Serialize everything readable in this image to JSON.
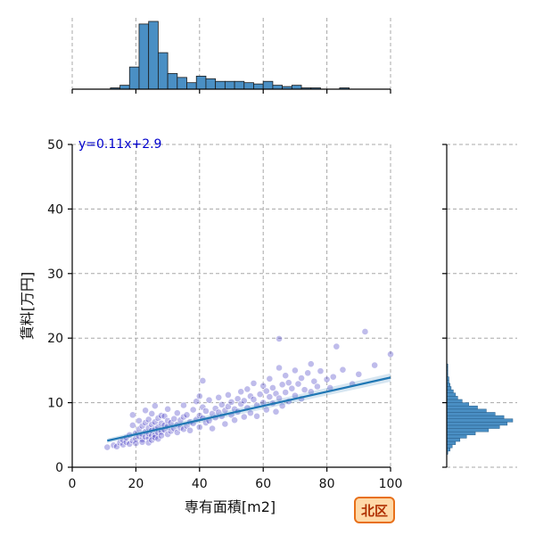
{
  "chart_data": {
    "type": "scatter",
    "xlabel": "専有面積[m2]",
    "ylabel": "賃料[万円]",
    "xlim": [
      0,
      100
    ],
    "ylim": [
      0,
      50
    ],
    "xticks": [
      "0",
      "20",
      "40",
      "60",
      "80",
      "100"
    ],
    "yticks": [
      "0",
      "10",
      "20",
      "30",
      "40",
      "50"
    ],
    "grid": true,
    "regression": {
      "label": "y=0.11x+2.9",
      "slope": 0.11,
      "intercept": 2.9,
      "x_range": [
        11,
        100
      ]
    },
    "badge": "北区",
    "colors": {
      "points": "#1a10b8",
      "regression": "#1f77b4",
      "hist_fill": "#4a8fc4",
      "hist_edge": "#1c1c1c",
      "badge_fill": "#ffd9a8",
      "badge_edge": "#e8701a"
    },
    "points": [
      [
        11,
        3.1
      ],
      [
        13,
        3.4
      ],
      [
        14,
        3.2
      ],
      [
        15,
        3.8
      ],
      [
        16,
        3.5
      ],
      [
        16,
        4.2
      ],
      [
        17,
        3.9
      ],
      [
        17,
        4.6
      ],
      [
        18,
        3.6
      ],
      [
        18,
        5.0
      ],
      [
        19,
        4.1
      ],
      [
        19,
        6.5
      ],
      [
        19,
        8.1
      ],
      [
        20,
        4.4
      ],
      [
        20,
        5.3
      ],
      [
        20,
        3.7
      ],
      [
        21,
        4.8
      ],
      [
        21,
        5.9
      ],
      [
        21,
        7.2
      ],
      [
        22,
        4.3
      ],
      [
        22,
        5.1
      ],
      [
        22,
        6.4
      ],
      [
        22,
        3.9
      ],
      [
        23,
        4.7
      ],
      [
        23,
        5.5
      ],
      [
        23,
        6.9
      ],
      [
        23,
        8.8
      ],
      [
        24,
        4.5
      ],
      [
        24,
        5.2
      ],
      [
        24,
        6.1
      ],
      [
        24,
        7.4
      ],
      [
        24,
        3.8
      ],
      [
        25,
        4.9
      ],
      [
        25,
        5.7
      ],
      [
        25,
        6.6
      ],
      [
        25,
        8.3
      ],
      [
        25,
        4.2
      ],
      [
        26,
        5.0
      ],
      [
        26,
        5.9
      ],
      [
        26,
        7.0
      ],
      [
        26,
        4.6
      ],
      [
        26,
        9.5
      ],
      [
        27,
        5.3
      ],
      [
        27,
        6.2
      ],
      [
        27,
        7.6
      ],
      [
        27,
        4.4
      ],
      [
        28,
        5.5
      ],
      [
        28,
        6.8
      ],
      [
        28,
        8.0
      ],
      [
        28,
        4.9
      ],
      [
        29,
        5.8
      ],
      [
        29,
        6.5
      ],
      [
        29,
        7.9
      ],
      [
        30,
        5.1
      ],
      [
        30,
        6.3
      ],
      [
        30,
        7.2
      ],
      [
        30,
        9.0
      ],
      [
        31,
        5.6
      ],
      [
        31,
        6.9
      ],
      [
        32,
        6.0
      ],
      [
        32,
        7.5
      ],
      [
        33,
        5.4
      ],
      [
        33,
        6.6
      ],
      [
        33,
        8.4
      ],
      [
        34,
        6.1
      ],
      [
        34,
        7.3
      ],
      [
        35,
        5.9
      ],
      [
        35,
        7.8
      ],
      [
        35,
        9.6
      ],
      [
        36,
        6.4
      ],
      [
        36,
        8.1
      ],
      [
        37,
        5.7
      ],
      [
        37,
        7.0
      ],
      [
        38,
        6.8
      ],
      [
        38,
        8.9
      ],
      [
        39,
        7.4
      ],
      [
        39,
        10.2
      ],
      [
        40,
        6.2
      ],
      [
        40,
        8.0
      ],
      [
        40,
        11.0
      ],
      [
        41,
        7.6
      ],
      [
        41,
        9.3
      ],
      [
        41,
        13.4
      ],
      [
        42,
        6.9
      ],
      [
        42,
        8.7
      ],
      [
        43,
        7.2
      ],
      [
        43,
        10.4
      ],
      [
        44,
        8.3
      ],
      [
        44,
        6.0
      ],
      [
        45,
        9.1
      ],
      [
        45,
        7.7
      ],
      [
        46,
        8.5
      ],
      [
        46,
        10.8
      ],
      [
        47,
        7.9
      ],
      [
        47,
        9.7
      ],
      [
        48,
        8.8
      ],
      [
        48,
        6.7
      ],
      [
        49,
        9.4
      ],
      [
        49,
        11.2
      ],
      [
        50,
        8.1
      ],
      [
        50,
        10.1
      ],
      [
        51,
        9.0
      ],
      [
        51,
        7.3
      ],
      [
        52,
        10.6
      ],
      [
        52,
        8.6
      ],
      [
        53,
        9.8
      ],
      [
        53,
        11.7
      ],
      [
        54,
        7.8
      ],
      [
        54,
        10.3
      ],
      [
        55,
        9.2
      ],
      [
        55,
        12.1
      ],
      [
        56,
        8.4
      ],
      [
        56,
        11.0
      ],
      [
        57,
        10.5
      ],
      [
        57,
        13.0
      ],
      [
        58,
        9.6
      ],
      [
        58,
        7.9
      ],
      [
        59,
        11.3
      ],
      [
        60,
        10.0
      ],
      [
        60,
        12.6
      ],
      [
        61,
        8.9
      ],
      [
        61,
        11.8
      ],
      [
        62,
        10.9
      ],
      [
        62,
        13.7
      ],
      [
        63,
        9.9
      ],
      [
        63,
        12.3
      ],
      [
        64,
        11.4
      ],
      [
        64,
        8.6
      ],
      [
        65,
        10.7
      ],
      [
        65,
        15.4
      ],
      [
        65,
        19.9
      ],
      [
        66,
        12.8
      ],
      [
        66,
        9.5
      ],
      [
        67,
        11.6
      ],
      [
        67,
        14.2
      ],
      [
        68,
        10.2
      ],
      [
        68,
        13.1
      ],
      [
        69,
        12.2
      ],
      [
        70,
        11.1
      ],
      [
        70,
        15.0
      ],
      [
        71,
        12.9
      ],
      [
        72,
        10.6
      ],
      [
        72,
        13.8
      ],
      [
        73,
        12.0
      ],
      [
        74,
        14.6
      ],
      [
        75,
        11.7
      ],
      [
        75,
        16.0
      ],
      [
        76,
        13.3
      ],
      [
        77,
        12.5
      ],
      [
        78,
        14.9
      ],
      [
        80,
        13.6
      ],
      [
        81,
        12.3
      ],
      [
        82,
        14.0
      ],
      [
        83,
        18.7
      ],
      [
        85,
        15.1
      ],
      [
        88,
        12.9
      ],
      [
        90,
        14.4
      ],
      [
        92,
        21.0
      ],
      [
        95,
        15.8
      ],
      [
        100,
        17.5
      ]
    ],
    "top_hist": {
      "bin_start": 12,
      "bin_width": 3,
      "counts": [
        1,
        3,
        17,
        50,
        52,
        28,
        12,
        9,
        5,
        10,
        8,
        6,
        6,
        6,
        5,
        4,
        6,
        3,
        2,
        3,
        1,
        1,
        0,
        0,
        1,
        0,
        0,
        0,
        0
      ]
    },
    "right_hist": {
      "bin_start": 2,
      "bin_width": 0.5,
      "counts": [
        1,
        3,
        5,
        8,
        12,
        18,
        26,
        38,
        48,
        55,
        60,
        52,
        44,
        36,
        28,
        20,
        14,
        10,
        8,
        6,
        4,
        3,
        2,
        2,
        1,
        1,
        1,
        1
      ]
    }
  }
}
